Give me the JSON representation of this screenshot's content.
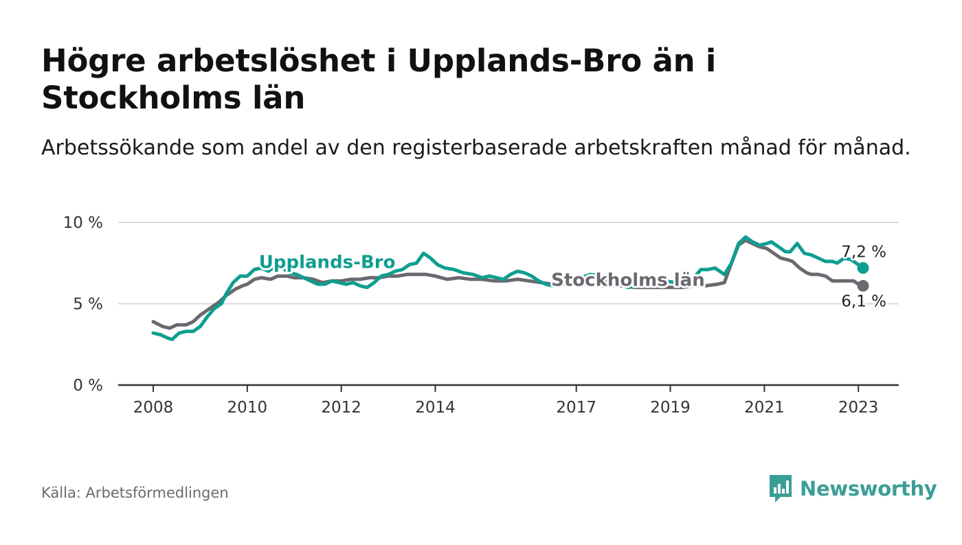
{
  "header": {
    "title": "Högre arbetslöshet i Upplands-Bro än i Stockholms län",
    "subtitle": "Arbetssökande som andel av den registerbaserade arbetskraften månad för månad."
  },
  "footer": {
    "source": "Källa: Arbetsförmedlingen",
    "brand": "Newsworthy"
  },
  "colors": {
    "upplands_bro": "#0e9e90",
    "stockholms_lan": "#6b6870",
    "grid": "#d9d9d9",
    "axis": "#333333"
  },
  "chart_data": {
    "type": "line",
    "title": "Högre arbetslöshet i Upplands-Bro än i Stockholms län",
    "xlabel": "",
    "ylabel": "",
    "ylim": [
      0,
      10
    ],
    "xlim": [
      2008.0,
      2023.1
    ],
    "y_ticks": [
      {
        "value": 0,
        "label": "0 %"
      },
      {
        "value": 5,
        "label": "5 %"
      },
      {
        "value": 10,
        "label": "10 %"
      }
    ],
    "x_ticks": [
      {
        "value": 2008,
        "label": "2008"
      },
      {
        "value": 2010,
        "label": "2010"
      },
      {
        "value": 2012,
        "label": "2012"
      },
      {
        "value": 2014,
        "label": "2014"
      },
      {
        "value": 2017,
        "label": "2017"
      },
      {
        "value": 2019,
        "label": "2019"
      },
      {
        "value": 2021,
        "label": "2021"
      },
      {
        "value": 2023,
        "label": "2023"
      }
    ],
    "series": [
      {
        "name": "Stockholms län",
        "color_key": "stockholms_lan",
        "end_label": "6,1 %",
        "points": [
          [
            2008.0,
            3.9
          ],
          [
            2008.2,
            3.6
          ],
          [
            2008.35,
            3.5
          ],
          [
            2008.5,
            3.7
          ],
          [
            2008.7,
            3.7
          ],
          [
            2008.85,
            3.9
          ],
          [
            2009.0,
            4.3
          ],
          [
            2009.2,
            4.7
          ],
          [
            2009.4,
            5.1
          ],
          [
            2009.55,
            5.5
          ],
          [
            2009.75,
            5.9
          ],
          [
            2009.9,
            6.1
          ],
          [
            2010.0,
            6.2
          ],
          [
            2010.15,
            6.5
          ],
          [
            2010.3,
            6.6
          ],
          [
            2010.5,
            6.5
          ],
          [
            2010.65,
            6.7
          ],
          [
            2010.85,
            6.7
          ],
          [
            2011.0,
            6.6
          ],
          [
            2011.2,
            6.6
          ],
          [
            2011.4,
            6.5
          ],
          [
            2011.6,
            6.3
          ],
          [
            2011.8,
            6.4
          ],
          [
            2012.0,
            6.4
          ],
          [
            2012.2,
            6.5
          ],
          [
            2012.4,
            6.5
          ],
          [
            2012.6,
            6.6
          ],
          [
            2012.8,
            6.6
          ],
          [
            2013.0,
            6.7
          ],
          [
            2013.2,
            6.7
          ],
          [
            2013.4,
            6.8
          ],
          [
            2013.6,
            6.8
          ],
          [
            2013.8,
            6.8
          ],
          [
            2014.0,
            6.7
          ],
          [
            2014.25,
            6.5
          ],
          [
            2014.5,
            6.6
          ],
          [
            2014.75,
            6.5
          ],
          [
            2015.0,
            6.5
          ],
          [
            2015.25,
            6.4
          ],
          [
            2015.5,
            6.4
          ],
          [
            2015.75,
            6.5
          ],
          [
            2016.0,
            6.4
          ],
          [
            2016.25,
            6.3
          ],
          [
            2016.5,
            6.2
          ],
          [
            2016.75,
            6.2
          ],
          [
            2017.0,
            6.2
          ],
          [
            2017.25,
            6.2
          ],
          [
            2017.5,
            6.1
          ],
          [
            2017.75,
            6.1
          ],
          [
            2018.0,
            6.1
          ],
          [
            2018.25,
            6.0
          ],
          [
            2018.5,
            6.0
          ],
          [
            2018.75,
            6.0
          ],
          [
            2019.0,
            6.0
          ],
          [
            2019.25,
            6.0
          ],
          [
            2019.5,
            6.1
          ],
          [
            2019.75,
            6.1
          ],
          [
            2020.0,
            6.2
          ],
          [
            2020.15,
            6.3
          ],
          [
            2020.3,
            7.5
          ],
          [
            2020.45,
            8.6
          ],
          [
            2020.6,
            8.9
          ],
          [
            2020.75,
            8.7
          ],
          [
            2020.9,
            8.5
          ],
          [
            2021.05,
            8.4
          ],
          [
            2021.2,
            8.1
          ],
          [
            2021.35,
            7.8
          ],
          [
            2021.5,
            7.7
          ],
          [
            2021.6,
            7.6
          ],
          [
            2021.75,
            7.2
          ],
          [
            2021.9,
            6.9
          ],
          [
            2022.0,
            6.8
          ],
          [
            2022.15,
            6.8
          ],
          [
            2022.3,
            6.7
          ],
          [
            2022.45,
            6.4
          ],
          [
            2022.6,
            6.4
          ],
          [
            2022.75,
            6.4
          ],
          [
            2022.9,
            6.4
          ],
          [
            2023.0,
            6.2
          ],
          [
            2023.1,
            6.1
          ]
        ]
      },
      {
        "name": "Upplands-Bro",
        "color_key": "upplands_bro",
        "end_label": "7,2 %",
        "points": [
          [
            2008.0,
            3.2
          ],
          [
            2008.15,
            3.1
          ],
          [
            2008.3,
            2.9
          ],
          [
            2008.4,
            2.8
          ],
          [
            2008.55,
            3.2
          ],
          [
            2008.7,
            3.3
          ],
          [
            2008.85,
            3.3
          ],
          [
            2009.0,
            3.6
          ],
          [
            2009.15,
            4.2
          ],
          [
            2009.3,
            4.7
          ],
          [
            2009.45,
            5.0
          ],
          [
            2009.55,
            5.6
          ],
          [
            2009.7,
            6.3
          ],
          [
            2009.85,
            6.7
          ],
          [
            2010.0,
            6.7
          ],
          [
            2010.15,
            7.1
          ],
          [
            2010.3,
            7.2
          ],
          [
            2010.45,
            7.0
          ],
          [
            2010.6,
            7.3
          ],
          [
            2010.75,
            7.2
          ],
          [
            2010.9,
            6.9
          ],
          [
            2011.05,
            6.8
          ],
          [
            2011.2,
            6.6
          ],
          [
            2011.35,
            6.4
          ],
          [
            2011.5,
            6.2
          ],
          [
            2011.65,
            6.2
          ],
          [
            2011.8,
            6.4
          ],
          [
            2011.95,
            6.3
          ],
          [
            2012.1,
            6.2
          ],
          [
            2012.25,
            6.3
          ],
          [
            2012.4,
            6.1
          ],
          [
            2012.55,
            6.0
          ],
          [
            2012.7,
            6.3
          ],
          [
            2012.85,
            6.7
          ],
          [
            2013.0,
            6.8
          ],
          [
            2013.15,
            7.0
          ],
          [
            2013.3,
            7.1
          ],
          [
            2013.45,
            7.4
          ],
          [
            2013.6,
            7.5
          ],
          [
            2013.75,
            8.1
          ],
          [
            2013.9,
            7.8
          ],
          [
            2014.05,
            7.4
          ],
          [
            2014.2,
            7.2
          ],
          [
            2014.4,
            7.1
          ],
          [
            2014.6,
            6.9
          ],
          [
            2014.8,
            6.8
          ],
          [
            2015.0,
            6.6
          ],
          [
            2015.15,
            6.7
          ],
          [
            2015.3,
            6.6
          ],
          [
            2015.45,
            6.5
          ],
          [
            2015.6,
            6.8
          ],
          [
            2015.75,
            7.0
          ],
          [
            2015.9,
            6.9
          ],
          [
            2016.05,
            6.7
          ],
          [
            2016.2,
            6.4
          ],
          [
            2016.35,
            6.2
          ],
          [
            2016.5,
            6.1
          ],
          [
            2016.7,
            6.3
          ],
          [
            2016.9,
            6.5
          ],
          [
            2017.1,
            6.6
          ],
          [
            2017.3,
            6.8
          ],
          [
            2017.5,
            6.7
          ],
          [
            2017.7,
            6.3
          ],
          [
            2017.9,
            6.2
          ],
          [
            2018.1,
            6.0
          ],
          [
            2018.3,
            6.1
          ],
          [
            2018.5,
            6.2
          ],
          [
            2018.7,
            6.3
          ],
          [
            2018.9,
            6.4
          ],
          [
            2019.1,
            6.3
          ],
          [
            2019.3,
            6.2
          ],
          [
            2019.5,
            6.6
          ],
          [
            2019.65,
            7.1
          ],
          [
            2019.8,
            7.1
          ],
          [
            2019.95,
            7.2
          ],
          [
            2020.05,
            7.0
          ],
          [
            2020.15,
            6.8
          ],
          [
            2020.3,
            7.5
          ],
          [
            2020.45,
            8.7
          ],
          [
            2020.6,
            9.1
          ],
          [
            2020.75,
            8.8
          ],
          [
            2020.9,
            8.6
          ],
          [
            2021.05,
            8.7
          ],
          [
            2021.15,
            8.8
          ],
          [
            2021.3,
            8.5
          ],
          [
            2021.45,
            8.2
          ],
          [
            2021.55,
            8.2
          ],
          [
            2021.7,
            8.7
          ],
          [
            2021.85,
            8.1
          ],
          [
            2022.0,
            8.0
          ],
          [
            2022.15,
            7.8
          ],
          [
            2022.3,
            7.6
          ],
          [
            2022.45,
            7.6
          ],
          [
            2022.55,
            7.5
          ],
          [
            2022.7,
            7.8
          ],
          [
            2022.85,
            7.7
          ],
          [
            2023.0,
            7.4
          ],
          [
            2023.1,
            7.2
          ]
        ]
      }
    ],
    "series_labels": [
      {
        "text": "Upplands-Bro",
        "series": "Upplands-Bro",
        "anchor_x": 2011.7,
        "anchor_y": 7.2
      },
      {
        "text": "Stockholms län",
        "series": "Stockholms län",
        "anchor_x": 2018.1,
        "anchor_y": 6.1
      }
    ]
  }
}
